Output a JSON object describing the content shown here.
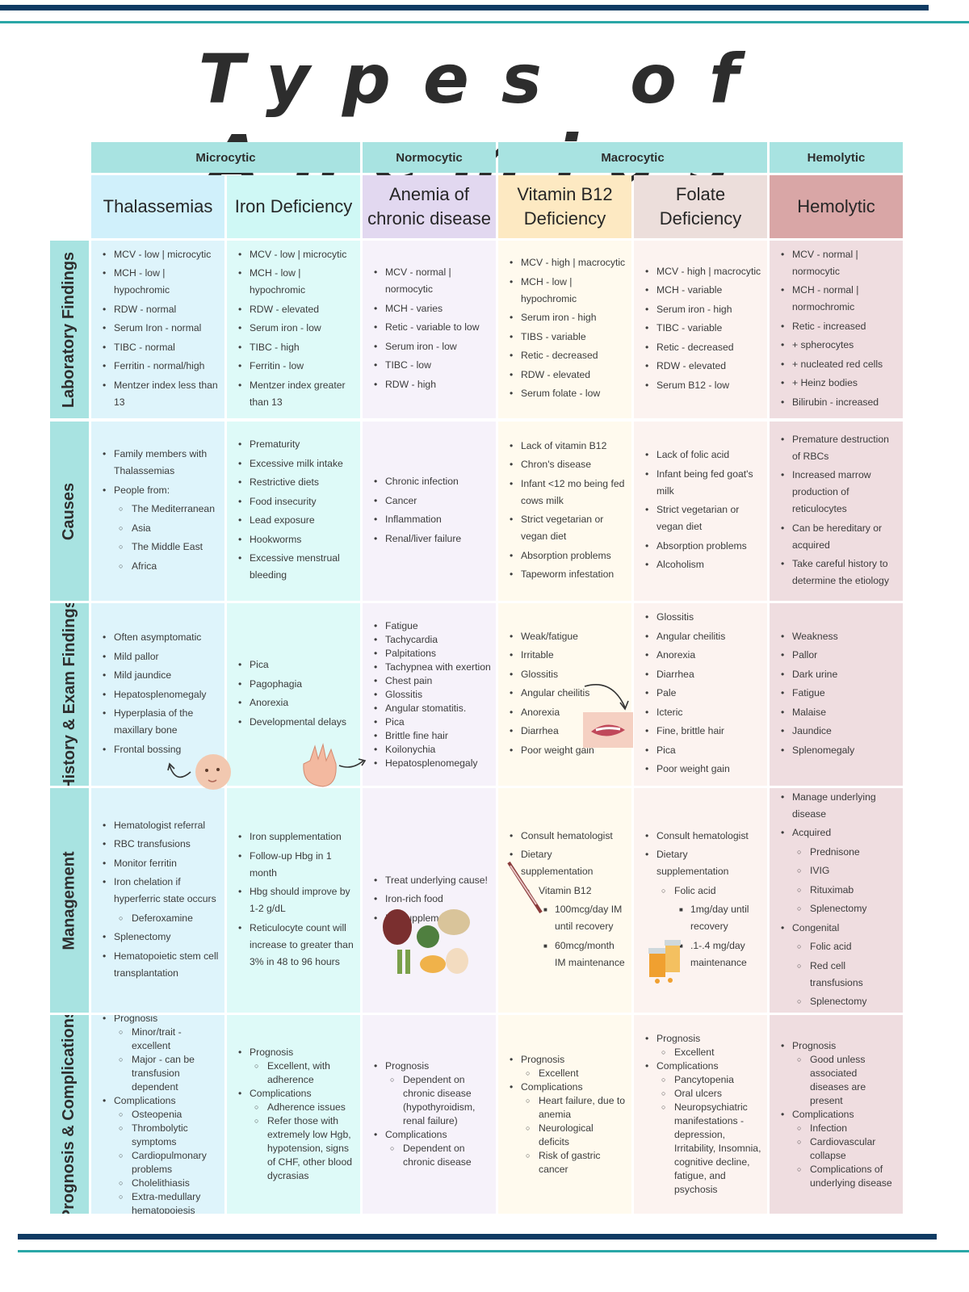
{
  "title": "Types of Anemias",
  "colors": {
    "navy": "#0f3b63",
    "teal": "#2aa7a7"
  },
  "groups": [
    "Microcytic",
    "Normocytic",
    "Macrocytic",
    "Hemolytic"
  ],
  "columns": [
    "Thalassemias",
    "Iron Deficiency",
    "Anemia of chronic disease",
    "Vitamin B12 Deficiency",
    "Folate Deficiency",
    "Hemolytic"
  ],
  "row_labels": [
    "Laboratory Findings",
    "Causes",
    "History & Exam Findings",
    "Management",
    "Prognosis & Complications"
  ],
  "cells": [
    [
      [
        [
          "MCV - low | microcytic",
          0
        ],
        [
          "MCH - low | hypochromic",
          0
        ],
        [
          "RDW - normal",
          0
        ],
        [
          "Serum Iron - normal",
          0
        ],
        [
          "TIBC - normal",
          0
        ],
        [
          "Ferritin - normal/high",
          0
        ],
        [
          "Mentzer index less than 13",
          0
        ]
      ],
      [
        [
          "MCV - low | microcytic",
          0
        ],
        [
          "MCH - low | hypochromic",
          0
        ],
        [
          "RDW - elevated",
          0
        ],
        [
          "Serum iron - low",
          0
        ],
        [
          "TIBC - high",
          0
        ],
        [
          "Ferritin - low",
          0
        ],
        [
          "Mentzer index greater than 13",
          0
        ]
      ],
      [
        [
          "MCV - normal | normocytic",
          0
        ],
        [
          "MCH - varies",
          0
        ],
        [
          "Retic - variable to low",
          0
        ],
        [
          "Serum iron - low",
          0
        ],
        [
          "TIBC - low",
          0
        ],
        [
          "RDW - high",
          0
        ]
      ],
      [
        [
          "MCV - high | macrocytic",
          0
        ],
        [
          "MCH - low | hypochromic",
          0
        ],
        [
          "Serum iron - high",
          0
        ],
        [
          "TIBS - variable",
          0
        ],
        [
          "Retic - decreased",
          0
        ],
        [
          "RDW - elevated",
          0
        ],
        [
          "Serum folate - low",
          0
        ]
      ],
      [
        [
          "MCV - high | macrocytic",
          0
        ],
        [
          "MCH - variable",
          0
        ],
        [
          "Serum iron - high",
          0
        ],
        [
          "TIBC - variable",
          0
        ],
        [
          "Retic - decreased",
          0
        ],
        [
          "RDW - elevated",
          0
        ],
        [
          "Serum B12 - low",
          0
        ]
      ],
      [
        [
          "MCV - normal | normocytic",
          0
        ],
        [
          "MCH - normal | normochromic",
          0
        ],
        [
          "Retic - increased",
          0
        ],
        [
          "+ spherocytes",
          0
        ],
        [
          "+ nucleated red cells",
          0
        ],
        [
          "+ Heinz bodies",
          0
        ],
        [
          "Bilirubin - increased",
          0
        ]
      ]
    ],
    [
      [
        [
          "Family members with Thalassemias",
          0
        ],
        [
          "People from:",
          0
        ],
        [
          "The Mediterranean",
          1
        ],
        [
          "Asia",
          1
        ],
        [
          "The Middle East",
          1
        ],
        [
          "Africa",
          1
        ]
      ],
      [
        [
          "Prematurity",
          0
        ],
        [
          "Excessive milk intake",
          0
        ],
        [
          "Restrictive diets",
          0
        ],
        [
          "Food insecurity",
          0
        ],
        [
          "Lead exposure",
          0
        ],
        [
          "Hookworms",
          0
        ],
        [
          "Excessive menstrual bleeding",
          0
        ]
      ],
      [
        [
          "Chronic infection",
          0
        ],
        [
          "Cancer",
          0
        ],
        [
          "Inflammation",
          0
        ],
        [
          "Renal/liver failure",
          0
        ]
      ],
      [
        [
          "Lack of vitamin B12",
          0
        ],
        [
          "Chron's disease",
          0
        ],
        [
          "Infant <12 mo being fed cows milk",
          0
        ],
        [
          "Strict vegetarian or vegan diet",
          0
        ],
        [
          "Absorption problems",
          0
        ],
        [
          "Tapeworm infestation",
          0
        ]
      ],
      [
        [
          "Lack of folic acid",
          0
        ],
        [
          "Infant being fed goat's milk",
          0
        ],
        [
          "Strict vegetarian or vegan diet",
          0
        ],
        [
          "Absorption problems",
          0
        ],
        [
          "Alcoholism",
          0
        ]
      ],
      [
        [
          "Premature destruction of RBCs",
          0
        ],
        [
          "Increased marrow production of reticulocytes",
          0
        ],
        [
          "Can be hereditary or acquired",
          0
        ],
        [
          "Take careful history to determine the etiology",
          0
        ]
      ]
    ],
    [
      [
        [
          "Often asymptomatic",
          0
        ],
        [
          "Mild pallor",
          0
        ],
        [
          "Mild jaundice",
          0
        ],
        [
          "Hepatosplenomegaly",
          0
        ],
        [
          "Hyperplasia of the maxillary bone",
          0
        ],
        [
          "Frontal bossing",
          0
        ]
      ],
      [
        [
          "Pica",
          0
        ],
        [
          "Pagophagia",
          0
        ],
        [
          "Anorexia",
          0
        ],
        [
          "Developmental delays",
          0
        ]
      ],
      [
        [
          "Fatigue",
          0
        ],
        [
          "Tachycardia",
          0
        ],
        [
          "Palpitations",
          0
        ],
        [
          "Tachypnea with exertion",
          0
        ],
        [
          "Chest pain",
          0
        ],
        [
          "Glossitis",
          0
        ],
        [
          "Angular stomatitis.",
          0
        ],
        [
          "Pica",
          0
        ],
        [
          "Brittle fine hair",
          0
        ],
        [
          "Koilonychia",
          0
        ],
        [
          "Hepatosplenomegaly",
          0
        ]
      ],
      [
        [
          "Weak/fatigue",
          0
        ],
        [
          "Irritable",
          0
        ],
        [
          "Glossitis",
          0
        ],
        [
          "Angular cheilitis",
          0
        ],
        [
          "Anorexia",
          0
        ],
        [
          "Diarrhea",
          0
        ],
        [
          "Poor weight gain",
          0
        ]
      ],
      [
        [
          "Glossitis",
          0
        ],
        [
          "Angular cheilitis",
          0
        ],
        [
          "Anorexia",
          0
        ],
        [
          "Diarrhea",
          0
        ],
        [
          "Pale",
          0
        ],
        [
          "Icteric",
          0
        ],
        [
          "Fine, brittle hair",
          0
        ],
        [
          "Pica",
          0
        ],
        [
          "Poor weight gain",
          0
        ]
      ],
      [
        [
          "Weakness",
          0
        ],
        [
          "Pallor",
          0
        ],
        [
          "Dark urine",
          0
        ],
        [
          "Fatigue",
          0
        ],
        [
          "Malaise",
          0
        ],
        [
          "Jaundice",
          0
        ],
        [
          "Splenomegaly",
          0
        ]
      ]
    ],
    [
      [
        [
          "Hematologist referral",
          0
        ],
        [
          "RBC transfusions",
          0
        ],
        [
          "Monitor ferritin",
          0
        ],
        [
          "Iron chelation if hyperferric state occurs",
          0
        ],
        [
          "Deferoxamine",
          1
        ],
        [
          "Splenectomy",
          0
        ],
        [
          "Hematopoietic stem cell transplantation",
          0
        ]
      ],
      [
        [
          "Iron supplementation",
          0
        ],
        [
          "Follow-up Hbg in 1 month",
          0
        ],
        [
          "Hbg should improve by 1-2 g/dL",
          0
        ],
        [
          "Reticulocyte count will increase to greater than 3% in 48 to 96 hours",
          0
        ]
      ],
      [
        [
          "Treat underlying cause!",
          0
        ],
        [
          "Iron-rich food",
          0
        ],
        [
          "Ion supplements",
          0
        ]
      ],
      [
        [
          "Consult hematologist",
          0
        ],
        [
          "Dietary supplementation",
          0
        ],
        [
          "Vitamin B12",
          1
        ],
        [
          "100mcg/day IM until recovery",
          2
        ],
        [
          "60mcg/month IM maintenance",
          2
        ]
      ],
      [
        [
          "Consult hematologist",
          0
        ],
        [
          "Dietary supplementation",
          0
        ],
        [
          "Folic acid",
          1
        ],
        [
          "1mg/day until recovery",
          2
        ],
        [
          ".1-.4 mg/day maintenance",
          2
        ]
      ],
      [
        [
          "Manage underlying disease",
          0
        ],
        [
          "Acquired",
          0
        ],
        [
          "Prednisone",
          1
        ],
        [
          "IVIG",
          1
        ],
        [
          "Rituximab",
          1
        ],
        [
          "Splenectomy",
          1
        ],
        [
          "Congenital",
          0
        ],
        [
          "Folic acid",
          1
        ],
        [
          "Red cell transfusions",
          1
        ],
        [
          "Splenectomy",
          1
        ]
      ]
    ],
    [
      [
        [
          "Prognosis",
          0
        ],
        [
          "Minor/trait - excellent",
          1
        ],
        [
          "Major - can be transfusion dependent",
          1
        ],
        [
          "Complications",
          0
        ],
        [
          "Osteopenia",
          1
        ],
        [
          "Thrombolytic symptoms",
          1
        ],
        [
          "Cardiopulmonary problems",
          1
        ],
        [
          "Cholelithiasis",
          1
        ],
        [
          "Extra-medullary hematopoiesis",
          1
        ]
      ],
      [
        [
          "Prognosis",
          0
        ],
        [
          "Excellent, with adherence",
          1
        ],
        [
          "Complications",
          0
        ],
        [
          "Adherence issues",
          1
        ],
        [
          "Refer those with extremely low Hgb, hypotension, signs of CHF, other blood dycrasias",
          1
        ]
      ],
      [
        [
          "Prognosis",
          0
        ],
        [
          "Dependent on chronic disease (hypothyroidism, renal failure)",
          1
        ],
        [
          "Complications",
          0
        ],
        [
          "Dependent on chronic disease",
          1
        ]
      ],
      [
        [
          "Prognosis",
          0
        ],
        [
          "Excellent",
          1
        ],
        [
          "Complications",
          0
        ],
        [
          "Heart failure, due to anemia",
          1
        ],
        [
          "Neurological deficits",
          1
        ],
        [
          "Risk of gastric cancer",
          1
        ]
      ],
      [
        [
          "Prognosis",
          0
        ],
        [
          "Excellent",
          1
        ],
        [
          "Complications",
          0
        ],
        [
          "Pancytopenia",
          1
        ],
        [
          "Oral ulcers",
          1
        ],
        [
          "Neuropsychiatric manifestations - depression, Irritability, Insomnia, cognitive decline, fatigue, and psychosis",
          1
        ]
      ],
      [
        [
          "Prognosis",
          0
        ],
        [
          "Good unless associated diseases are present",
          1
        ],
        [
          "Complications",
          0
        ],
        [
          "Infection",
          1
        ],
        [
          "Cardiovascular collapse",
          1
        ],
        [
          "Complications of underlying disease",
          1
        ]
      ]
    ]
  ]
}
